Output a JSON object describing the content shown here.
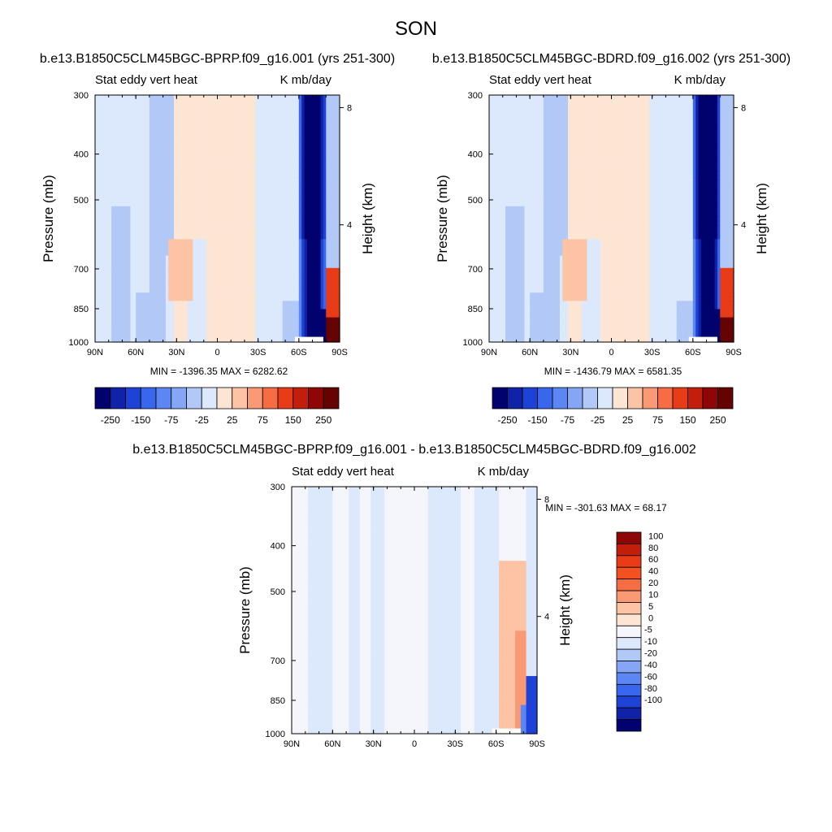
{
  "figure": {
    "title": "SON"
  },
  "chart_data": [
    {
      "type": "heatmap",
      "run_title": "b.e13.B1850C5CLM45BGC-BPRP.f09_g16.001 (yrs 251-300)",
      "left_label": "Stat eddy vert heat",
      "right_label": "K mb/day",
      "ylabel": "Pressure (mb)",
      "ylabel_right": "Height (km)",
      "x_ticks": [
        "90N",
        "60N",
        "30N",
        "0",
        "30S",
        "60S",
        "90S"
      ],
      "x_values": [
        90,
        60,
        30,
        0,
        -30,
        -60,
        -90
      ],
      "y_ticks": [
        "300",
        "400",
        "500",
        "700",
        "850",
        "1000"
      ],
      "y_values": [
        300,
        400,
        500,
        700,
        850,
        1000
      ],
      "height_ticks": [
        "8",
        "4"
      ],
      "height_values_km": [
        8,
        4
      ],
      "stats": "MIN = -1396.35  MAX = 6282.62",
      "min": -1396.35,
      "max": 6282.62,
      "colorbar": {
        "orientation": "horizontal",
        "labels": [
          "-250",
          "-150",
          "-75",
          "-25",
          "25",
          "75",
          "150",
          "250"
        ],
        "levels": [
          -250,
          -200,
          -150,
          -100,
          -75,
          -50,
          -25,
          0,
          25,
          50,
          75,
          100,
          150,
          200,
          250
        ],
        "colors": [
          "#02026f",
          "#0f22a8",
          "#1e42d6",
          "#3866ec",
          "#5c86f2",
          "#84a6f4",
          "#b2c9f7",
          "#dce8fb",
          "#fde5d4",
          "#fcc4a4",
          "#f99a75",
          "#f56c45",
          "#e83b17",
          "#c31d0b",
          "#8f0606",
          "#650303"
        ]
      },
      "field_features": {
        "southern_high_latitude": "strong negative core near 65S-80S through the column, positive near surface at 80S-90S",
        "midlatitudes": "weak alternating bands of -25 to 25"
      }
    },
    {
      "type": "heatmap",
      "run_title": "b.e13.B1850C5CLM45BGC-BDRD.f09_g16.002 (yrs 251-300)",
      "left_label": "Stat eddy vert heat",
      "right_label": "K mb/day",
      "ylabel": "Pressure (mb)",
      "ylabel_right": "Height (km)",
      "x_ticks": [
        "90N",
        "60N",
        "30N",
        "0",
        "30S",
        "60S",
        "90S"
      ],
      "x_values": [
        90,
        60,
        30,
        0,
        -30,
        -60,
        -90
      ],
      "y_ticks": [
        "300",
        "400",
        "500",
        "700",
        "850",
        "1000"
      ],
      "y_values": [
        300,
        400,
        500,
        700,
        850,
        1000
      ],
      "height_ticks": [
        "8",
        "4"
      ],
      "height_values_km": [
        8,
        4
      ],
      "stats": "MIN = -1436.79  MAX = 6581.35",
      "min": -1436.79,
      "max": 6581.35,
      "colorbar": {
        "orientation": "horizontal",
        "labels": [
          "-250",
          "-150",
          "-75",
          "-25",
          "25",
          "75",
          "150",
          "250"
        ],
        "levels": [
          -250,
          -200,
          -150,
          -100,
          -75,
          -50,
          -25,
          0,
          25,
          50,
          75,
          100,
          150,
          200,
          250
        ],
        "colors": [
          "#02026f",
          "#0f22a8",
          "#1e42d6",
          "#3866ec",
          "#5c86f2",
          "#84a6f4",
          "#b2c9f7",
          "#dce8fb",
          "#fde5d4",
          "#fcc4a4",
          "#f99a75",
          "#f56c45",
          "#e83b17",
          "#c31d0b",
          "#8f0606",
          "#650303"
        ]
      }
    },
    {
      "type": "heatmap",
      "run_title": "b.e13.B1850C5CLM45BGC-BPRP.f09_g16.001 - b.e13.B1850C5CLM45BGC-BDRD.f09_g16.002",
      "left_label": "Stat eddy vert heat",
      "right_label": "K mb/day",
      "ylabel": "Pressure (mb)",
      "ylabel_right": "Height (km)",
      "x_ticks": [
        "90N",
        "60N",
        "30N",
        "0",
        "30S",
        "60S",
        "90S"
      ],
      "x_values": [
        90,
        60,
        30,
        0,
        -30,
        -60,
        -90
      ],
      "y_ticks": [
        "300",
        "400",
        "500",
        "700",
        "850",
        "1000"
      ],
      "y_values": [
        300,
        400,
        500,
        700,
        850,
        1000
      ],
      "height_ticks": [
        "8",
        "4"
      ],
      "height_values_km": [
        8,
        4
      ],
      "stats": "MIN = -301.63  MAX =  68.17",
      "min": -301.63,
      "max": 68.17,
      "colorbar": {
        "orientation": "vertical",
        "labels": [
          "100",
          "80",
          "60",
          "40",
          "20",
          "10",
          "5",
          "0",
          "-5",
          "-10",
          "-20",
          "-40",
          "-60",
          "-80",
          "-100"
        ],
        "levels": [
          100,
          80,
          60,
          40,
          20,
          10,
          5,
          0,
          -5,
          -10,
          -20,
          -40,
          -60,
          -80,
          -100
        ],
        "colors": [
          "#8f0606",
          "#c31d0b",
          "#e83b17",
          "#f5501f",
          "#f56c45",
          "#f99a75",
          "#fcc4a4",
          "#fde5d4",
          "#f4f6fb",
          "#dce8fb",
          "#b2c9f7",
          "#84a6f4",
          "#5c86f2",
          "#3866ec",
          "#1e42d6",
          "#0f22a8",
          "#02026f"
        ]
      }
    }
  ]
}
